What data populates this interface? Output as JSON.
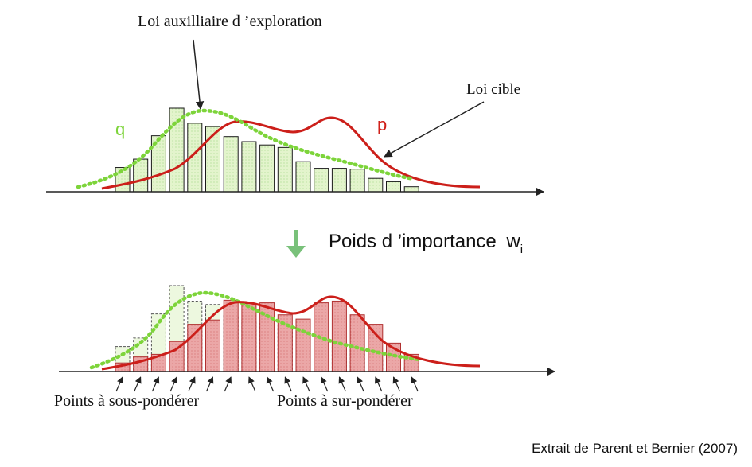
{
  "labels": {
    "exploration_law": "Loi auxilliaire d ’exploration",
    "target_law": "Loi cible",
    "q": "q",
    "p": "p",
    "importance_weights": "Poids d ’importance",
    "w": "w",
    "w_sub": "i",
    "under_weight": "Points à sous-pondérer",
    "over_weight": "Points à sur-pondérer",
    "source": "Extrait de Parent et Bernier (2007)"
  },
  "colors": {
    "q_curve": "#7dd43a",
    "p_curve": "#cc1f1a",
    "q_bar_fill": "#e6f5d0",
    "p_bar_fill": "#eaa8a8",
    "arrow_green": "#79c17a",
    "axis": "#222222"
  },
  "chart_data": {
    "top": {
      "type": "bar",
      "bin_values": [
        0.29,
        0.39,
        0.67,
        1.0,
        0.82,
        0.78,
        0.66,
        0.6,
        0.56,
        0.53,
        0.36,
        0.28,
        0.28,
        0.27,
        0.16,
        0.12,
        0.06
      ]
    },
    "bottom": {
      "type": "bar",
      "q_bin_values": [
        0.29,
        0.39,
        0.67,
        1.0,
        0.82,
        0.78,
        0.66,
        0.6,
        0.56,
        0.53,
        0.36,
        0.28,
        0.28,
        0.27,
        0.16,
        0.12,
        0.06
      ],
      "p_bin_values": [
        0.1,
        0.17,
        0.2,
        0.35,
        0.55,
        0.6,
        0.83,
        0.79,
        0.8,
        0.66,
        0.61,
        0.8,
        0.82,
        0.66,
        0.55,
        0.33,
        0.2
      ]
    }
  }
}
